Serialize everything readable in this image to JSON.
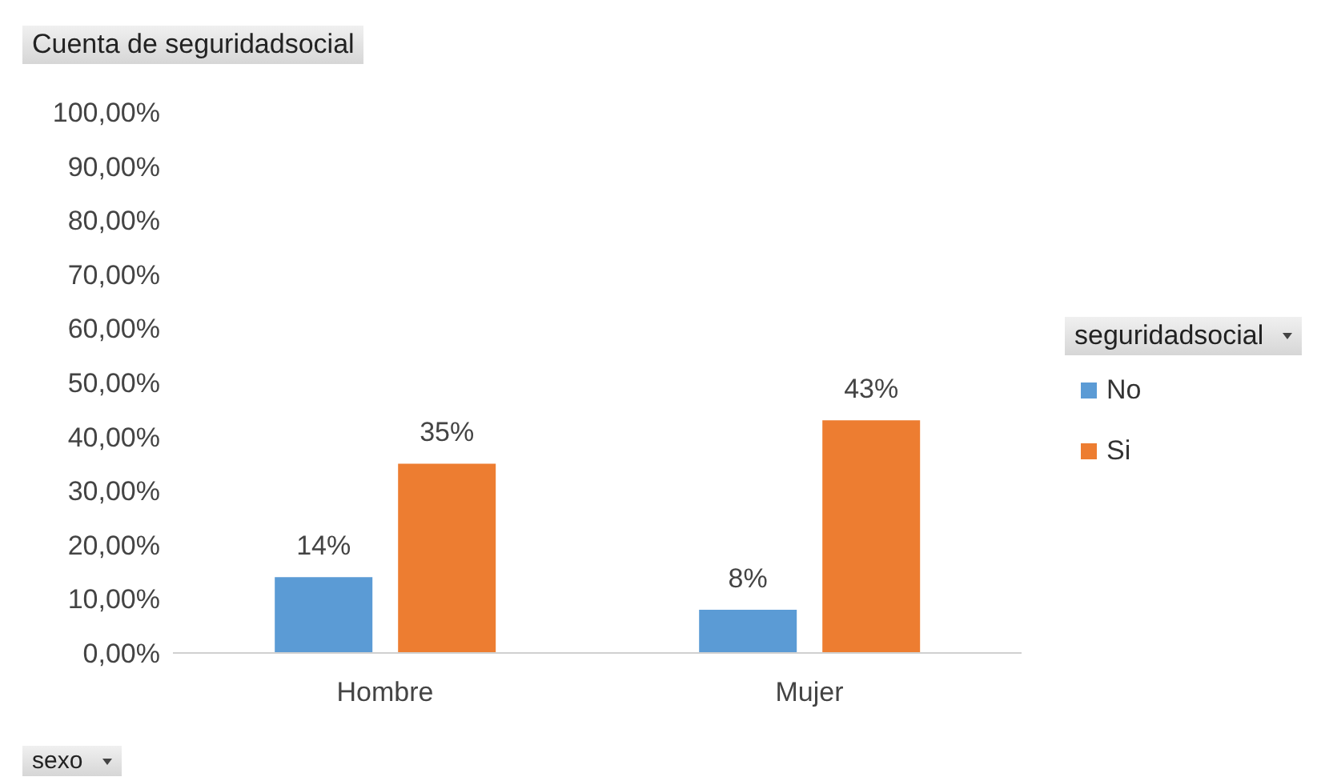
{
  "chart_data": {
    "type": "bar",
    "title": "Cuenta de seguridadsocial",
    "xlabel": "sexo",
    "legend_title": "seguridadsocial",
    "categories": [
      "Hombre",
      "Mujer"
    ],
    "series": [
      {
        "name": "No",
        "color": "#5b9bd5",
        "values": [
          14,
          8
        ],
        "value_labels": [
          "14%",
          "8%"
        ]
      },
      {
        "name": "Si",
        "color": "#ed7d31",
        "values": [
          35,
          43
        ],
        "value_labels": [
          "35%",
          "43%"
        ]
      }
    ],
    "ylim": [
      0,
      100
    ],
    "yticks": [
      {
        "value": 0,
        "label": "0,00%"
      },
      {
        "value": 10,
        "label": "10,00%"
      },
      {
        "value": 20,
        "label": "20,00%"
      },
      {
        "value": 30,
        "label": "30,00%"
      },
      {
        "value": 40,
        "label": "40,00%"
      },
      {
        "value": 50,
        "label": "50,00%"
      },
      {
        "value": 60,
        "label": "60,00%"
      },
      {
        "value": 70,
        "label": "70,00%"
      },
      {
        "value": 80,
        "label": "80,00%"
      },
      {
        "value": 90,
        "label": "90,00%"
      },
      {
        "value": 100,
        "label": "100,00%"
      }
    ],
    "grid": false,
    "legend": "right"
  }
}
